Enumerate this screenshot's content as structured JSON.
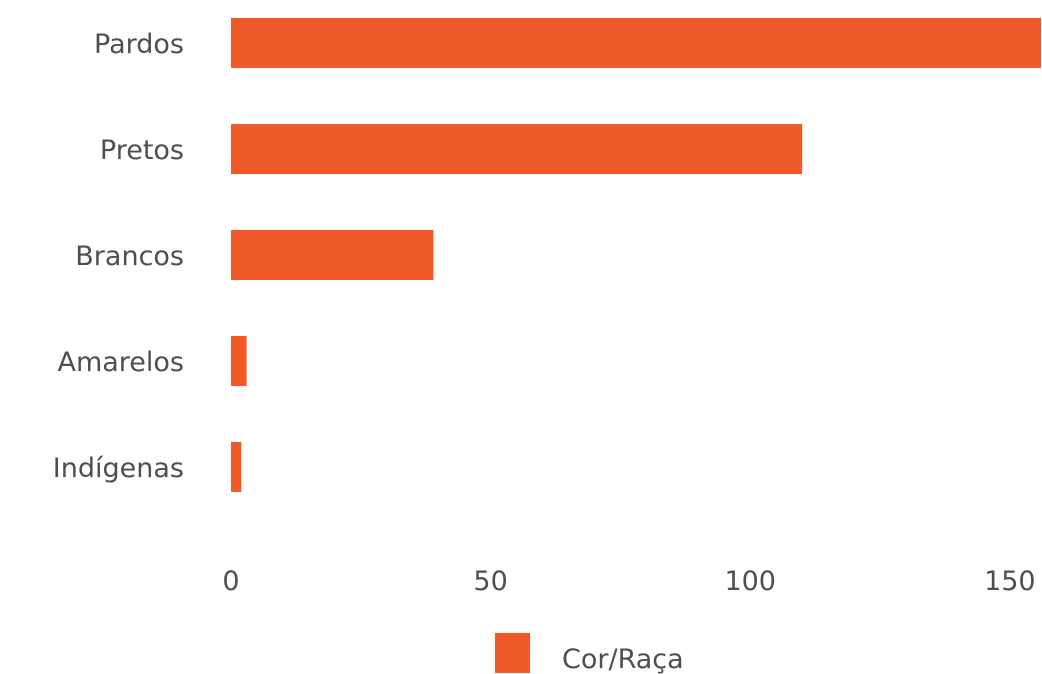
{
  "chart_data": {
    "type": "bar",
    "orientation": "horizontal",
    "categories": [
      "Pardos",
      "Pretos",
      "Brancos",
      "Amarelos",
      "Indígenas"
    ],
    "series": [
      {
        "name": "Cor/Raça",
        "values": [
          156,
          110,
          39,
          3,
          2
        ]
      }
    ],
    "xlim": [
      0,
      156
    ],
    "xticks": [
      0,
      50,
      100,
      150
    ],
    "xtick_labels": [
      "0",
      "50",
      "100",
      "150"
    ],
    "grid": false,
    "legend": {
      "position": "bottom",
      "entries": [
        "Cor/Raça"
      ]
    },
    "colors": {
      "bar": "#f05a28",
      "text": "#4f4f4f"
    }
  }
}
